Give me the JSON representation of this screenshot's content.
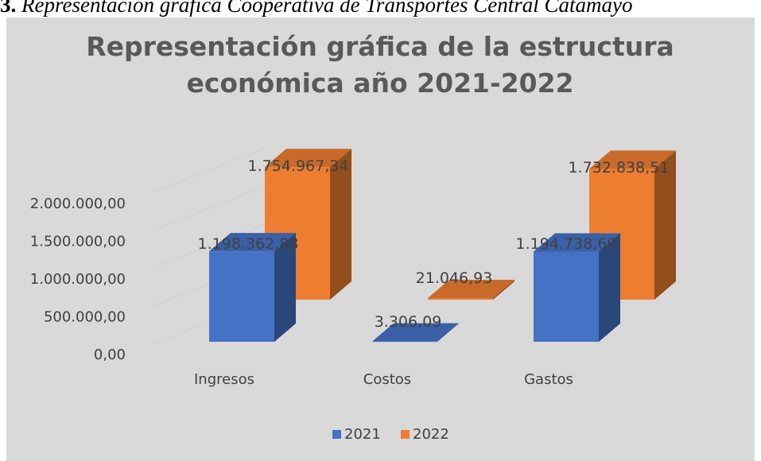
{
  "caption": {
    "number": "3.",
    "text": "Representación gráfica Cooperativa de Transportes Central Catamayo"
  },
  "colors": {
    "series_2021": "#4472c4",
    "series_2022": "#ed7d31",
    "background": "#d9d9d9",
    "text": "#404040",
    "title": "#595959"
  },
  "chart_data": {
    "type": "bar",
    "variant": "3d-clustered-column",
    "title_lines": [
      "Representación gráfica de la estructura",
      "económica año 2021-2022"
    ],
    "categories": [
      "Ingresos",
      "Costos",
      "Gastos"
    ],
    "series": [
      {
        "name": "2021",
        "values": [
          1198362.88,
          3306.09,
          1194738.69
        ],
        "labels": [
          "1.198.362,88",
          "3.306,09",
          "1.194.738,69"
        ]
      },
      {
        "name": "2022",
        "values": [
          1754967.34,
          21046.93,
          1732838.51
        ],
        "labels": [
          "1.754.967,34",
          "21.046,93",
          "1.732.838,51"
        ]
      }
    ],
    "ylim": [
      0,
      2000000
    ],
    "yticks": [
      0,
      500000,
      1000000,
      1500000,
      2000000
    ],
    "ytick_labels": [
      "0,00",
      "500.000,00",
      "1.000.000,00",
      "1.500.000,00",
      "2.000.000,00"
    ],
    "legend_position": "bottom",
    "grid": true
  }
}
